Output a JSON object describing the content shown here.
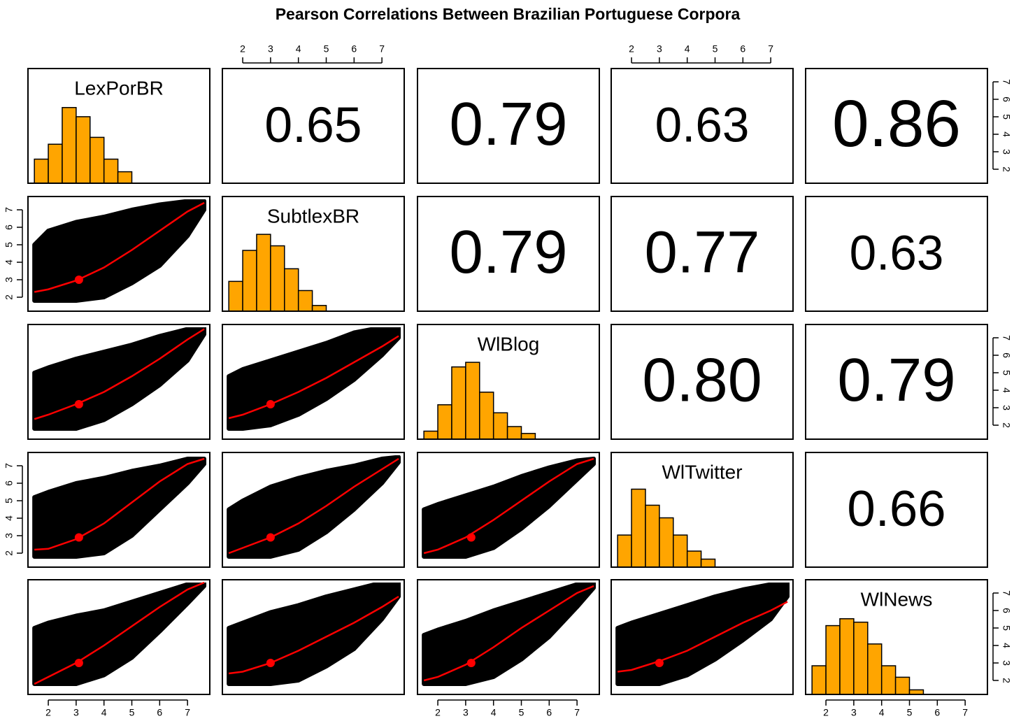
{
  "chart_data": {
    "type": "pairs",
    "title": "Pearson Correlations Between Brazilian Portuguese Corpora",
    "variables": [
      "LexPorBR",
      "SubtlexBR",
      "WlBlog",
      "WlTwitter",
      "WlNews"
    ],
    "xlim": [
      1.27,
      7.8
    ],
    "ylim": [
      1.2,
      7.76
    ],
    "xticks": [
      2,
      3,
      4,
      5,
      6,
      7
    ],
    "yticks": [
      2,
      3,
      4,
      5,
      6,
      7
    ],
    "correlations": {
      "values": [
        [
          null,
          0.65,
          0.79,
          0.63,
          0.86
        ],
        [
          null,
          null,
          0.79,
          0.77,
          0.63
        ],
        [
          null,
          null,
          null,
          0.8,
          0.79
        ],
        [
          null,
          null,
          null,
          null,
          0.66
        ],
        [
          null,
          null,
          null,
          null,
          null
        ]
      ],
      "value_labels": [
        [
          null,
          "0.65",
          "0.79",
          "0.63",
          "0.86"
        ],
        [
          null,
          null,
          "0.79",
          "0.77",
          "0.63"
        ],
        [
          null,
          null,
          null,
          "0.80",
          "0.79"
        ],
        [
          null,
          null,
          null,
          null,
          "0.66"
        ],
        [
          null,
          null,
          null,
          null,
          null
        ]
      ]
    },
    "hist_color": "#ffa500",
    "hist_ylim": [
      0,
      1
    ],
    "histograms": [
      {
        "bins": [
          1.5,
          2,
          2.5,
          3,
          3.5,
          4,
          4.5,
          5
        ],
        "values": [
          0.21,
          0.34,
          0.66,
          0.58,
          0.4,
          0.21,
          0.1
        ]
      },
      {
        "bins": [
          1.5,
          2,
          2.5,
          3,
          3.5,
          4,
          4.5,
          5
        ],
        "values": [
          0.26,
          0.53,
          0.67,
          0.57,
          0.37,
          0.18,
          0.05
        ]
      },
      {
        "bins": [
          1.5,
          2,
          2.5,
          3,
          3.5,
          4,
          4.5,
          5,
          5.5
        ],
        "values": [
          0.07,
          0.3,
          0.63,
          0.67,
          0.41,
          0.23,
          0.11,
          0.05
        ]
      },
      {
        "bins": [
          1.5,
          2,
          2.5,
          3,
          3.5,
          4,
          4.5,
          5
        ],
        "values": [
          0.28,
          0.68,
          0.54,
          0.43,
          0.28,
          0.14,
          0.07
        ]
      },
      {
        "bins": [
          1.5,
          2,
          2.5,
          3,
          3.5,
          4,
          4.5,
          5,
          5.5
        ],
        "values": [
          0.25,
          0.6,
          0.66,
          0.63,
          0.44,
          0.25,
          0.15,
          0.04
        ]
      }
    ],
    "point_color": "#000000",
    "smooth_color": "#ff0000",
    "panel_x": [
      1.5,
      2,
      3,
      4,
      5,
      6,
      7,
      7.6
    ],
    "scatter": [
      {
        "smooth": [
          2.3,
          2.45,
          2.95,
          3.7,
          4.7,
          5.8,
          6.9,
          7.4
        ],
        "band_low": [
          1.8,
          1.8,
          1.8,
          2.0,
          2.8,
          3.8,
          5.5,
          7.0
        ],
        "band_high": [
          5.0,
          5.8,
          6.3,
          6.6,
          7.0,
          7.3,
          7.5,
          7.5
        ],
        "mean": [
          3.1,
          3.0
        ]
      },
      {
        "smooth": [
          2.35,
          2.6,
          3.2,
          3.9,
          4.8,
          5.8,
          6.9,
          7.5
        ],
        "band_low": [
          1.8,
          1.8,
          1.8,
          2.3,
          3.2,
          4.3,
          5.7,
          7.2
        ],
        "band_high": [
          5.0,
          5.3,
          5.8,
          6.2,
          6.6,
          7.1,
          7.5,
          7.6
        ],
        "mean": [
          3.1,
          3.2
        ]
      },
      {
        "smooth": [
          2.4,
          2.6,
          3.2,
          3.9,
          4.7,
          5.6,
          6.5,
          7.1
        ],
        "band_low": [
          1.8,
          1.8,
          2.0,
          2.6,
          3.5,
          4.6,
          6.0,
          7.0
        ],
        "band_high": [
          4.8,
          5.2,
          5.7,
          6.2,
          6.7,
          7.3,
          7.6,
          7.6
        ],
        "mean": [
          3.0,
          3.2
        ]
      },
      {
        "smooth": [
          2.2,
          2.25,
          2.8,
          3.7,
          4.9,
          6.1,
          7.1,
          7.4
        ],
        "band_low": [
          1.8,
          1.8,
          1.8,
          2.0,
          3.0,
          4.5,
          6.0,
          7.1
        ],
        "band_high": [
          5.2,
          5.5,
          6.0,
          6.3,
          6.7,
          7.0,
          7.4,
          7.4
        ],
        "mean": [
          3.1,
          2.9
        ]
      },
      {
        "smooth": [
          2.0,
          2.3,
          2.9,
          3.7,
          4.7,
          5.8,
          6.8,
          7.4
        ],
        "band_low": [
          1.8,
          1.8,
          1.8,
          2.2,
          3.2,
          4.5,
          6.0,
          7.2
        ],
        "band_high": [
          4.5,
          5.0,
          5.8,
          6.3,
          6.7,
          7.0,
          7.4,
          7.5
        ],
        "mean": [
          3.0,
          2.9
        ]
      },
      {
        "smooth": [
          2.0,
          2.2,
          2.9,
          3.9,
          5.0,
          6.1,
          7.1,
          7.4
        ],
        "band_low": [
          1.8,
          1.8,
          1.8,
          2.3,
          3.4,
          4.7,
          6.2,
          7.1
        ],
        "band_high": [
          4.5,
          4.8,
          5.3,
          5.8,
          6.4,
          6.9,
          7.3,
          7.4
        ],
        "mean": [
          3.2,
          2.9
        ]
      },
      {
        "smooth": [
          1.8,
          2.2,
          3.0,
          4.0,
          5.1,
          6.2,
          7.2,
          7.6
        ],
        "band_low": [
          1.8,
          1.8,
          1.8,
          2.3,
          3.3,
          4.8,
          6.4,
          7.4
        ],
        "band_high": [
          5.0,
          5.3,
          5.7,
          6.0,
          6.5,
          7.0,
          7.5,
          7.6
        ],
        "mean": [
          3.1,
          3.0
        ]
      },
      {
        "smooth": [
          2.4,
          2.5,
          3.0,
          3.7,
          4.5,
          5.3,
          6.2,
          6.8
        ],
        "band_low": [
          1.8,
          1.8,
          1.8,
          2.0,
          2.8,
          3.8,
          5.5,
          6.8
        ],
        "band_high": [
          5.0,
          5.3,
          5.9,
          6.3,
          6.8,
          7.2,
          7.6,
          7.6
        ],
        "mean": [
          3.0,
          3.0
        ]
      },
      {
        "smooth": [
          2.0,
          2.2,
          2.9,
          3.9,
          5.0,
          6.0,
          7.0,
          7.4
        ],
        "band_low": [
          1.8,
          1.8,
          1.8,
          2.2,
          3.2,
          4.5,
          6.2,
          7.3
        ],
        "band_high": [
          4.6,
          4.9,
          5.4,
          6.0,
          6.5,
          7.0,
          7.5,
          7.6
        ],
        "mean": [
          3.2,
          3.0
        ]
      },
      {
        "smooth": [
          2.5,
          2.6,
          3.1,
          3.7,
          4.5,
          5.3,
          6.0,
          6.5
        ],
        "band_low": [
          1.8,
          1.8,
          1.8,
          2.3,
          3.2,
          4.3,
          5.5,
          6.8
        ],
        "band_high": [
          5.0,
          5.3,
          5.8,
          6.3,
          6.8,
          7.2,
          7.5,
          7.6
        ],
        "mean": [
          3.0,
          3.0
        ]
      }
    ]
  }
}
